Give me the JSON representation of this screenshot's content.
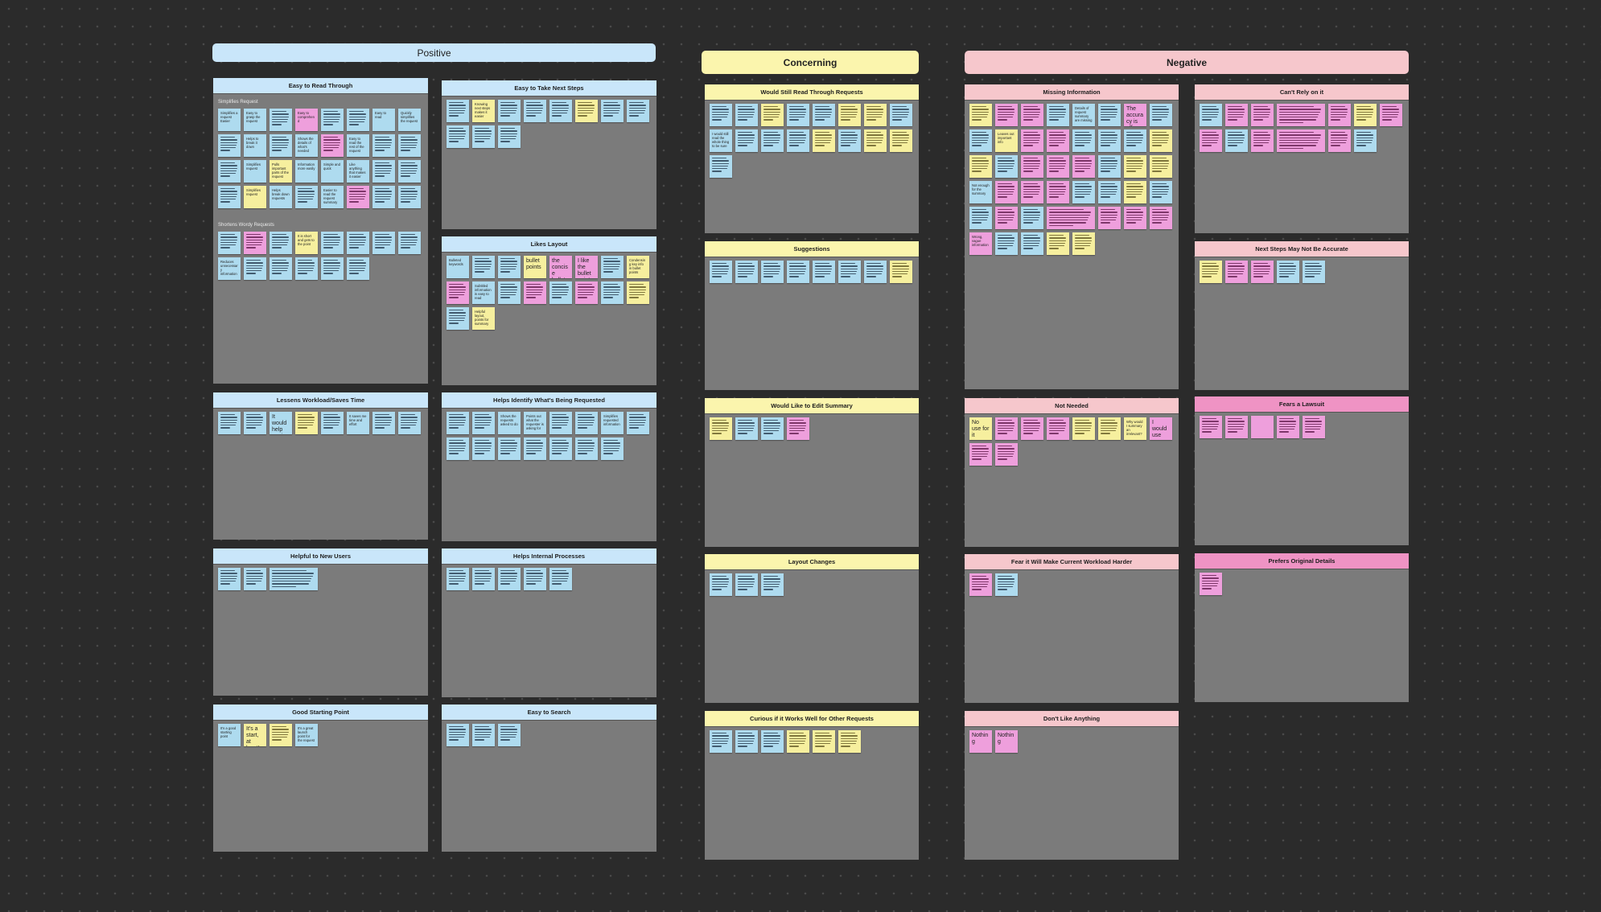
{
  "colors": {
    "canvas": "#2b2b2b",
    "frame": "#7b7b7b",
    "positive_header": "#c9e6fa",
    "concerning_header": "#fbf5ad",
    "negative_header": "#f6c7cc",
    "negative_strong_header": "#ef93c4",
    "note_blue": "#aedbef",
    "note_yellow": "#f6ef9e",
    "note_pink": "#ee9fdc"
  },
  "sections": {
    "positive": "Positive",
    "concerning": "Concerning",
    "negative": "Negative"
  },
  "frames": {
    "easy_read": {
      "title": "Easy to Read Through",
      "group1": "Simplifies Request",
      "group2": "Shortens Wordy Requests",
      "g1_notes": [
        {
          "c": "blue",
          "t": "Simplifies a request Easier"
        },
        {
          "c": "blue",
          "t": "Easy to grasp the request"
        },
        {
          "c": "blue",
          "t": ""
        },
        {
          "c": "pink",
          "t": "Easy to comprehend"
        },
        {
          "c": "blue",
          "t": ""
        },
        {
          "c": "blue",
          "t": ""
        },
        {
          "c": "blue",
          "t": "Easy to read"
        },
        {
          "c": "blue",
          "t": "Quickly simplifies the request"
        },
        {
          "c": "blue",
          "t": ""
        },
        {
          "c": "blue",
          "t": "Helps to break it down"
        },
        {
          "c": "blue",
          "t": ""
        },
        {
          "c": "blue",
          "t": "Shows the details of what's needed"
        },
        {
          "c": "pink",
          "t": ""
        },
        {
          "c": "blue",
          "t": "Easy to read the rest of the request"
        },
        {
          "c": "blue",
          "t": ""
        },
        {
          "c": "blue",
          "t": ""
        },
        {
          "c": "blue",
          "t": ""
        },
        {
          "c": "blue",
          "t": "Simplifies request"
        },
        {
          "c": "yellow",
          "t": "Pulls important parts of the request"
        },
        {
          "c": "blue",
          "t": "Information more easily"
        },
        {
          "c": "blue",
          "t": "Simple and quick"
        },
        {
          "c": "blue",
          "t": "Like anything that makes it easier"
        },
        {
          "c": "blue",
          "t": ""
        },
        {
          "c": "blue",
          "t": ""
        },
        {
          "c": "blue",
          "t": ""
        },
        {
          "c": "yellow",
          "t": "Simplifies request"
        },
        {
          "c": "blue",
          "t": "Helps break down requests"
        },
        {
          "c": "blue",
          "t": ""
        },
        {
          "c": "blue",
          "t": "Easier to read the request summary"
        },
        {
          "c": "pink",
          "t": ""
        },
        {
          "c": "blue",
          "t": ""
        },
        {
          "c": "blue",
          "t": ""
        }
      ],
      "g2_notes": [
        {
          "c": "blue",
          "t": ""
        },
        {
          "c": "pink",
          "t": ""
        },
        {
          "c": "blue",
          "t": ""
        },
        {
          "c": "yellow",
          "t": "It is short and gets to the point"
        },
        {
          "c": "blue",
          "t": ""
        },
        {
          "c": "blue",
          "t": ""
        },
        {
          "c": "blue",
          "t": ""
        },
        {
          "c": "blue",
          "t": ""
        },
        {
          "c": "blue",
          "t": "Reduces unnecessary information"
        },
        {
          "c": "blue",
          "t": ""
        },
        {
          "c": "blue",
          "t": ""
        },
        {
          "c": "blue",
          "t": ""
        },
        {
          "c": "blue",
          "t": ""
        },
        {
          "c": "blue",
          "t": ""
        }
      ]
    },
    "next_steps": {
      "title": "Easy to Take Next Steps",
      "notes": [
        {
          "c": "blue",
          "t": ""
        },
        {
          "c": "yellow",
          "t": "Knowing next steps makes it easier"
        },
        {
          "c": "blue",
          "t": ""
        },
        {
          "c": "blue",
          "t": ""
        },
        {
          "c": "blue",
          "t": ""
        },
        {
          "c": "yellow",
          "t": ""
        },
        {
          "c": "blue",
          "t": ""
        },
        {
          "c": "blue",
          "t": ""
        },
        {
          "c": "blue",
          "t": ""
        },
        {
          "c": "blue",
          "t": ""
        },
        {
          "c": "blue",
          "t": ""
        }
      ]
    },
    "likes_layout": {
      "title": "Likes Layout",
      "notes": [
        {
          "c": "blue",
          "t": "Bulleted keywords"
        },
        {
          "c": "blue",
          "t": ""
        },
        {
          "c": "blue",
          "t": ""
        },
        {
          "c": "yellow",
          "t": "bullet points",
          "big": true
        },
        {
          "c": "pink",
          "t": "the concise bullets",
          "big": true
        },
        {
          "c": "pink",
          "t": "I like the bullet points",
          "big": true
        },
        {
          "c": "blue",
          "t": ""
        },
        {
          "c": "yellow",
          "t": "Condensing key info in bullet points"
        },
        {
          "c": "pink",
          "t": ""
        },
        {
          "c": "blue",
          "t": "Subtitled information is easy to read"
        },
        {
          "c": "blue",
          "t": ""
        },
        {
          "c": "pink",
          "t": ""
        },
        {
          "c": "blue",
          "t": ""
        },
        {
          "c": "pink",
          "t": ""
        },
        {
          "c": "blue",
          "t": ""
        },
        {
          "c": "yellow",
          "t": ""
        },
        {
          "c": "blue",
          "t": ""
        },
        {
          "c": "yellow",
          "t": "Helpful layout, points for summary"
        }
      ]
    },
    "lessens_workload": {
      "title": "Lessens Workload/Saves Time",
      "notes": [
        {
          "c": "blue",
          "t": ""
        },
        {
          "c": "blue",
          "t": ""
        },
        {
          "c": "blue",
          "t": "It would help me in my job",
          "big": true
        },
        {
          "c": "yellow",
          "t": ""
        },
        {
          "c": "blue",
          "t": ""
        },
        {
          "c": "blue",
          "t": "It saves me time and effort"
        },
        {
          "c": "blue",
          "t": ""
        },
        {
          "c": "blue",
          "t": ""
        }
      ]
    },
    "identify": {
      "title": "Helps Identify What's Being Requested",
      "notes": [
        {
          "c": "blue",
          "t": ""
        },
        {
          "c": "blue",
          "t": ""
        },
        {
          "c": "blue",
          "t": "Shows the requests asked to do"
        },
        {
          "c": "blue",
          "t": "Points out what the requester is asking for"
        },
        {
          "c": "blue",
          "t": ""
        },
        {
          "c": "blue",
          "t": ""
        },
        {
          "c": "blue",
          "t": "Simplifies requested information"
        },
        {
          "c": "blue",
          "t": ""
        },
        {
          "c": "blue",
          "t": ""
        },
        {
          "c": "blue",
          "t": ""
        },
        {
          "c": "blue",
          "t": ""
        },
        {
          "c": "blue",
          "t": ""
        },
        {
          "c": "blue",
          "t": ""
        },
        {
          "c": "blue",
          "t": ""
        },
        {
          "c": "blue",
          "t": ""
        }
      ]
    },
    "new_users": {
      "title": "Helpful to New Users",
      "notes": [
        {
          "c": "blue",
          "t": ""
        },
        {
          "c": "blue",
          "t": ""
        },
        {
          "c": "blue",
          "t": "",
          "wide": true
        }
      ]
    },
    "internal": {
      "title": "Helps Internal Processes",
      "notes": [
        {
          "c": "blue",
          "t": ""
        },
        {
          "c": "blue",
          "t": ""
        },
        {
          "c": "blue",
          "t": ""
        },
        {
          "c": "blue",
          "t": ""
        },
        {
          "c": "blue",
          "t": ""
        }
      ]
    },
    "starting_point": {
      "title": "Good Starting Point",
      "notes": [
        {
          "c": "blue",
          "t": "It's a good starting point"
        },
        {
          "c": "yellow",
          "t": "It's a start, at least!",
          "big": true
        },
        {
          "c": "yellow",
          "t": ""
        },
        {
          "c": "blue",
          "t": "It's a great launch point for the request"
        }
      ]
    },
    "easy_search": {
      "title": "Easy to Search",
      "notes": [
        {
          "c": "blue",
          "t": ""
        },
        {
          "c": "blue",
          "t": ""
        },
        {
          "c": "blue",
          "t": ""
        }
      ]
    },
    "still_read": {
      "title": "Would Still Read Through Requests",
      "notes": [
        {
          "c": "blue",
          "t": ""
        },
        {
          "c": "blue",
          "t": ""
        },
        {
          "c": "yellow",
          "t": ""
        },
        {
          "c": "blue",
          "t": ""
        },
        {
          "c": "blue",
          "t": ""
        },
        {
          "c": "yellow",
          "t": ""
        },
        {
          "c": "yellow",
          "t": ""
        },
        {
          "c": "blue",
          "t": ""
        },
        {
          "c": "blue",
          "t": "I would still read the whole thing to be sure"
        },
        {
          "c": "blue",
          "t": ""
        },
        {
          "c": "blue",
          "t": ""
        },
        {
          "c": "blue",
          "t": ""
        },
        {
          "c": "yellow",
          "t": ""
        },
        {
          "c": "blue",
          "t": ""
        },
        {
          "c": "yellow",
          "t": ""
        },
        {
          "c": "yellow",
          "t": ""
        },
        {
          "c": "blue",
          "t": ""
        }
      ]
    },
    "suggestions": {
      "title": "Suggestions",
      "notes": [
        {
          "c": "blue",
          "t": ""
        },
        {
          "c": "blue",
          "t": ""
        },
        {
          "c": "blue",
          "t": ""
        },
        {
          "c": "blue",
          "t": ""
        },
        {
          "c": "blue",
          "t": ""
        },
        {
          "c": "blue",
          "t": ""
        },
        {
          "c": "blue",
          "t": ""
        },
        {
          "c": "yellow",
          "t": ""
        }
      ]
    },
    "edit_summary": {
      "title": "Would Like to Edit Summary",
      "notes": [
        {
          "c": "yellow",
          "t": ""
        },
        {
          "c": "blue",
          "t": ""
        },
        {
          "c": "blue",
          "t": ""
        },
        {
          "c": "pink",
          "t": ""
        }
      ]
    },
    "layout_changes": {
      "title": "Layout Changes",
      "notes": [
        {
          "c": "blue",
          "t": ""
        },
        {
          "c": "blue",
          "t": ""
        },
        {
          "c": "blue",
          "t": ""
        }
      ]
    },
    "other_requests": {
      "title": "Curious if it Works Well for Other Requests",
      "notes": [
        {
          "c": "blue",
          "t": ""
        },
        {
          "c": "blue",
          "t": ""
        },
        {
          "c": "blue",
          "t": ""
        },
        {
          "c": "yellow",
          "t": ""
        },
        {
          "c": "yellow",
          "t": ""
        },
        {
          "c": "yellow",
          "t": ""
        }
      ]
    },
    "missing_info": {
      "title": "Missing Information",
      "notes": [
        {
          "c": "yellow",
          "t": ""
        },
        {
          "c": "pink",
          "t": ""
        },
        {
          "c": "pink",
          "t": ""
        },
        {
          "c": "blue",
          "t": ""
        },
        {
          "c": "blue",
          "t": "Details of request summary are missing"
        },
        {
          "c": "blue",
          "t": ""
        },
        {
          "c": "pink",
          "t": "The accuracy is off",
          "big": true
        },
        {
          "c": "blue",
          "t": ""
        },
        {
          "c": "blue",
          "t": ""
        },
        {
          "c": "yellow",
          "t": "Leaves out important info"
        },
        {
          "c": "pink",
          "t": ""
        },
        {
          "c": "pink",
          "t": ""
        },
        {
          "c": "blue",
          "t": ""
        },
        {
          "c": "blue",
          "t": ""
        },
        {
          "c": "blue",
          "t": ""
        },
        {
          "c": "yellow",
          "t": ""
        },
        {
          "c": "yellow",
          "t": ""
        },
        {
          "c": "blue",
          "t": ""
        },
        {
          "c": "pink",
          "t": ""
        },
        {
          "c": "pink",
          "t": ""
        },
        {
          "c": "pink",
          "t": ""
        },
        {
          "c": "blue",
          "t": ""
        },
        {
          "c": "yellow",
          "t": ""
        },
        {
          "c": "yellow",
          "t": ""
        },
        {
          "c": "blue",
          "t": "Not enough for the summary"
        },
        {
          "c": "pink",
          "t": ""
        },
        {
          "c": "pink",
          "t": ""
        },
        {
          "c": "pink",
          "t": ""
        },
        {
          "c": "blue",
          "t": ""
        },
        {
          "c": "blue",
          "t": ""
        },
        {
          "c": "yellow",
          "t": ""
        },
        {
          "c": "blue",
          "t": ""
        },
        {
          "c": "blue",
          "t": ""
        },
        {
          "c": "pink",
          "t": ""
        },
        {
          "c": "blue",
          "t": ""
        },
        {
          "c": "pink",
          "t": "",
          "wide": true
        },
        {
          "c": "pink",
          "t": ""
        },
        {
          "c": "pink",
          "t": ""
        },
        {
          "c": "pink",
          "t": ""
        },
        {
          "c": "pink",
          "t": "Wrong, vague information"
        },
        {
          "c": "blue",
          "t": ""
        },
        {
          "c": "blue",
          "t": ""
        },
        {
          "c": "yellow",
          "t": ""
        },
        {
          "c": "yellow",
          "t": ""
        }
      ]
    },
    "cant_rely": {
      "title": "Can't Rely on it",
      "notes": [
        {
          "c": "blue",
          "t": ""
        },
        {
          "c": "pink",
          "t": ""
        },
        {
          "c": "pink",
          "t": ""
        },
        {
          "c": "pink",
          "t": "",
          "wide": true
        },
        {
          "c": "pink",
          "t": ""
        },
        {
          "c": "yellow",
          "t": ""
        },
        {
          "c": "pink",
          "t": ""
        },
        {
          "c": "pink",
          "t": ""
        },
        {
          "c": "blue",
          "t": ""
        },
        {
          "c": "pink",
          "t": ""
        },
        {
          "c": "pink",
          "t": "",
          "wide": true
        },
        {
          "c": "pink",
          "t": ""
        },
        {
          "c": "blue",
          "t": ""
        }
      ]
    },
    "next_steps_accurate": {
      "title": "Next Steps May Not Be Accurate",
      "notes": [
        {
          "c": "yellow",
          "t": ""
        },
        {
          "c": "pink",
          "t": ""
        },
        {
          "c": "pink",
          "t": ""
        },
        {
          "c": "blue",
          "t": ""
        },
        {
          "c": "blue",
          "t": ""
        }
      ]
    },
    "not_needed": {
      "title": "Not Needed",
      "notes": [
        {
          "c": "yellow",
          "t": "No use for it",
          "big": true
        },
        {
          "c": "pink",
          "t": ""
        },
        {
          "c": "pink",
          "t": ""
        },
        {
          "c": "pink",
          "t": ""
        },
        {
          "c": "yellow",
          "t": ""
        },
        {
          "c": "yellow",
          "t": ""
        },
        {
          "c": "yellow",
          "t": "Why would I summary an irrelevant?"
        },
        {
          "c": "pink",
          "t": "I would use my own",
          "big": true
        },
        {
          "c": "pink",
          "t": ""
        },
        {
          "c": "pink",
          "t": ""
        }
      ]
    },
    "lawsuit": {
      "title": "Fears a Lawsuit",
      "notes": [
        {
          "c": "pink",
          "t": ""
        },
        {
          "c": "pink",
          "t": ""
        },
        {
          "c": "pink",
          "t": "",
          "blank": true
        },
        {
          "c": "pink",
          "t": ""
        },
        {
          "c": "pink",
          "t": ""
        }
      ]
    },
    "workload_harder": {
      "title": "Fear it Will Make Current Workload Harder",
      "notes": [
        {
          "c": "pink",
          "t": ""
        },
        {
          "c": "blue",
          "t": ""
        }
      ]
    },
    "original_details": {
      "title": "Prefers Original Details",
      "notes": [
        {
          "c": "pink",
          "t": ""
        }
      ]
    },
    "dont_like": {
      "title": "Don't Like Anything",
      "notes": [
        {
          "c": "pink",
          "t": "Nothing",
          "big": true
        },
        {
          "c": "pink",
          "t": "Nothing",
          "big": true
        }
      ]
    }
  }
}
